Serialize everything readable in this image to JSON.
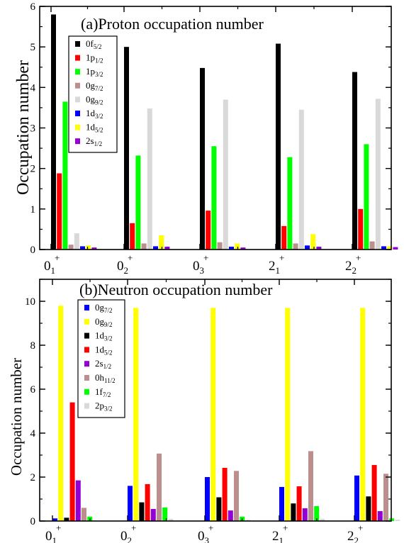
{
  "chart_data": [
    {
      "type": "bar",
      "title": "(a)Proton occupation number",
      "ylabel": "Occupation number",
      "ylim": [
        0,
        6
      ],
      "yticks": [
        "0",
        "1",
        "2",
        "3",
        "4",
        "5",
        "6"
      ],
      "categories": [
        {
          "base": "0",
          "sub": "1",
          "sup": "+"
        },
        {
          "base": "0",
          "sub": "2",
          "sup": "+"
        },
        {
          "base": "0",
          "sub": "3",
          "sup": "+"
        },
        {
          "base": "2",
          "sub": "1",
          "sup": "+"
        },
        {
          "base": "2",
          "sub": "2",
          "sup": "+"
        }
      ],
      "legend_position": "top-left",
      "series": [
        {
          "label": {
            "base": "0f",
            "sub": "5/2"
          },
          "color": "#000000",
          "values": [
            5.8,
            5.0,
            4.48,
            5.08,
            4.38
          ]
        },
        {
          "label": {
            "base": "1p",
            "sub": "1/2"
          },
          "color": "#ff0000",
          "values": [
            1.88,
            0.65,
            0.96,
            0.58,
            1.0
          ]
        },
        {
          "label": {
            "base": "1p",
            "sub": "3/2"
          },
          "color": "#00ff00",
          "values": [
            3.65,
            2.32,
            2.55,
            2.28,
            2.6
          ]
        },
        {
          "label": {
            "base": "0g",
            "sub": "7/2"
          },
          "color": "#bc8f8f",
          "values": [
            0.12,
            0.15,
            0.18,
            0.15,
            0.2
          ]
        },
        {
          "label": {
            "base": "0g",
            "sub": "9/2"
          },
          "color": "#d9d9d9",
          "values": [
            0.4,
            3.48,
            3.7,
            3.45,
            3.72
          ]
        },
        {
          "label": {
            "base": "1d",
            "sub": "3/2"
          },
          "color": "#0000ff",
          "values": [
            0.08,
            0.08,
            0.07,
            0.1,
            0.08
          ]
        },
        {
          "label": {
            "base": "1d",
            "sub": "5/2"
          },
          "color": "#ffff00",
          "values": [
            0.1,
            0.35,
            0.15,
            0.38,
            0.08
          ]
        },
        {
          "label": {
            "base": "2s",
            "sub": "1/2"
          },
          "color": "#9400d3",
          "values": [
            0.05,
            0.07,
            0.05,
            0.07,
            0.06
          ]
        }
      ]
    },
    {
      "type": "bar",
      "title": "(b)Neutron occupation number",
      "ylabel": "Occupation number",
      "ylim": [
        0,
        11
      ],
      "yticks": [
        "0",
        "2",
        "4",
        "6",
        "8",
        "10"
      ],
      "categories": [
        {
          "base": "0",
          "sub": "1",
          "sup": "+"
        },
        {
          "base": "0",
          "sub": "2",
          "sup": "+"
        },
        {
          "base": "0",
          "sub": "3",
          "sup": "+"
        },
        {
          "base": "2",
          "sub": "1",
          "sup": "+"
        },
        {
          "base": "2",
          "sub": "2",
          "sup": "+"
        }
      ],
      "legend_position": "top-left",
      "series": [
        {
          "label": {
            "base": "0g",
            "sub": "7/2"
          },
          "color": "#0000ff",
          "values": [
            0.12,
            1.6,
            2.0,
            1.55,
            2.07
          ]
        },
        {
          "label": {
            "base": "0g",
            "sub": "9/2"
          },
          "color": "#ffff00",
          "values": [
            9.8,
            9.7,
            9.7,
            9.7,
            9.7
          ]
        },
        {
          "label": {
            "base": "1d",
            "sub": "3/2"
          },
          "color": "#000000",
          "values": [
            0.15,
            0.85,
            1.08,
            0.8,
            1.12
          ]
        },
        {
          "label": {
            "base": "1d",
            "sub": "5/2"
          },
          "color": "#ff0000",
          "values": [
            5.4,
            1.68,
            2.42,
            1.58,
            2.55
          ]
        },
        {
          "label": {
            "base": "2s",
            "sub": "1/2"
          },
          "color": "#9400d3",
          "values": [
            1.85,
            0.55,
            0.48,
            0.58,
            0.45
          ]
        },
        {
          "label": {
            "base": "0h",
            "sub": "11/2"
          },
          "color": "#bc8f8f",
          "values": [
            0.6,
            3.07,
            2.28,
            3.18,
            2.15
          ]
        },
        {
          "label": {
            "base": "1f",
            "sub": "7/2"
          },
          "color": "#00ff00",
          "values": [
            0.2,
            0.62,
            0.2,
            0.68,
            0.12
          ]
        },
        {
          "label": {
            "base": "2p",
            "sub": "3/2"
          },
          "color": "#d9d9d9",
          "values": [
            0.02,
            0.1,
            0.06,
            0.1,
            0.06
          ]
        }
      ]
    }
  ]
}
